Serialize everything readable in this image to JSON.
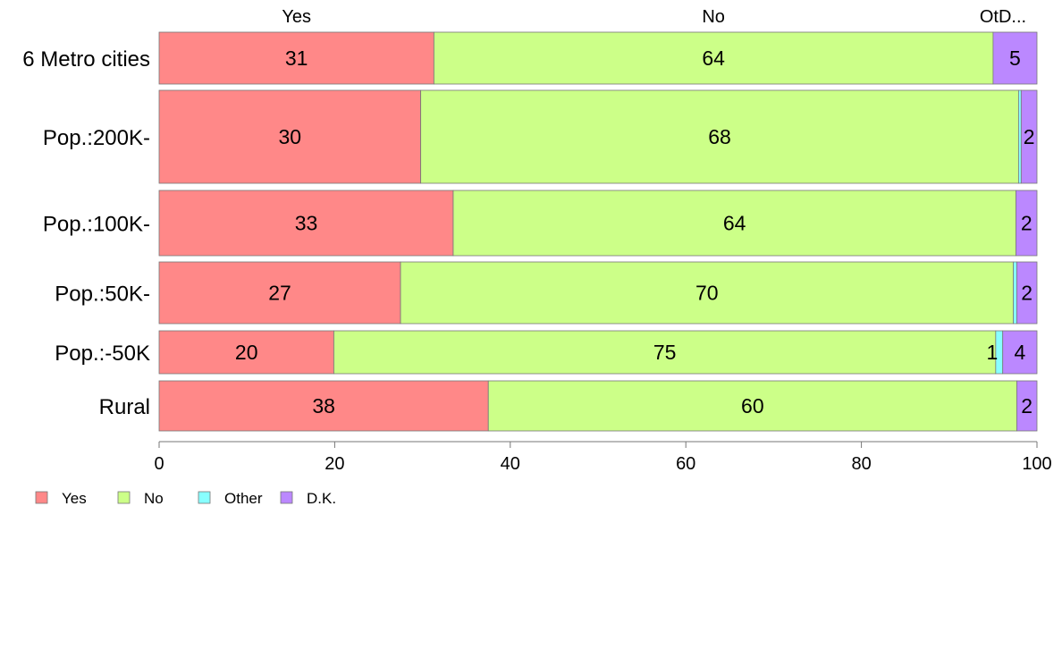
{
  "chart_data": {
    "type": "bar",
    "orientation": "horizontal",
    "stacked": true,
    "categories": [
      "6 Metro cities",
      "Pop.:200K-",
      "Pop.:100K-",
      "Pop.:50K-",
      "Pop.:-50K",
      "Rural"
    ],
    "series": [
      {
        "name": "Yes",
        "color": "#ff8888",
        "values": [
          31.3,
          29.8,
          33.5,
          27.5,
          19.9,
          37.5
        ]
      },
      {
        "name": "No",
        "color": "#ccff88",
        "values": [
          63.7,
          68.1,
          64.1,
          69.8,
          75.4,
          60.2
        ]
      },
      {
        "name": "Other",
        "color": "#88ffff",
        "values": [
          0.0,
          0.3,
          0.0,
          0.4,
          0.8,
          0.0
        ]
      },
      {
        "name": "D.K.",
        "color": "#bb88ff",
        "values": [
          5.0,
          1.8,
          2.4,
          2.3,
          3.9,
          2.3
        ]
      }
    ],
    "data_labels": [
      [
        "31",
        "64",
        "",
        "5"
      ],
      [
        "30",
        "68",
        "",
        "2"
      ],
      [
        "33",
        "64",
        "",
        "2"
      ],
      [
        "27",
        "70",
        "",
        "2"
      ],
      [
        "20",
        "75",
        "1",
        "4"
      ],
      [
        "38",
        "60",
        "",
        "2"
      ]
    ],
    "column_headers": [
      "Yes",
      "No",
      "OtD..."
    ],
    "xlim": [
      0,
      100
    ],
    "xticks": [
      0,
      20,
      40,
      60,
      80,
      100
    ],
    "grid": false,
    "legend": {
      "position": "bottom-left",
      "labels": [
        "Yes",
        "No",
        "Other",
        "D.K."
      ]
    }
  }
}
